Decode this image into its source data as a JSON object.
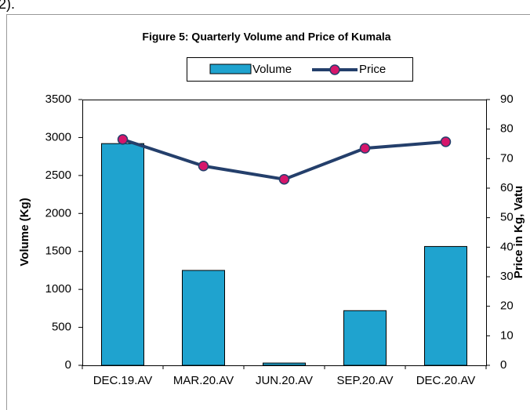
{
  "note": "2).",
  "chart_data": {
    "type": "bar_line",
    "title": "Figure 5: Quarterly Volume and Price of Kumala",
    "y_label": "Volume (Kg)",
    "y2_label": "Price in Kg, Vatu",
    "categories": [
      "DEC.19.AV",
      "MAR.20.AV",
      "JUN.20.AV",
      "SEP.20.AV",
      "DEC.20.AV"
    ],
    "series": [
      {
        "name": "Volume",
        "type": "bar",
        "color": "#1fa3cf",
        "values": [
          2920,
          1250,
          30,
          720,
          1565
        ]
      },
      {
        "name": "Price",
        "type": "line",
        "axis": "y2",
        "color": "#243f6b",
        "marker_color": "#d6166b",
        "values": [
          76.5,
          67.5,
          63,
          73.5,
          75.7
        ]
      }
    ],
    "ylim": [
      0,
      3500
    ],
    "yticks": [
      0,
      500,
      1000,
      1500,
      2000,
      2500,
      3000,
      3500
    ],
    "y2lim": [
      0,
      90
    ],
    "y2ticks": [
      0,
      10,
      20,
      30,
      40,
      50,
      60,
      70,
      80,
      90
    ],
    "legend": "top"
  }
}
